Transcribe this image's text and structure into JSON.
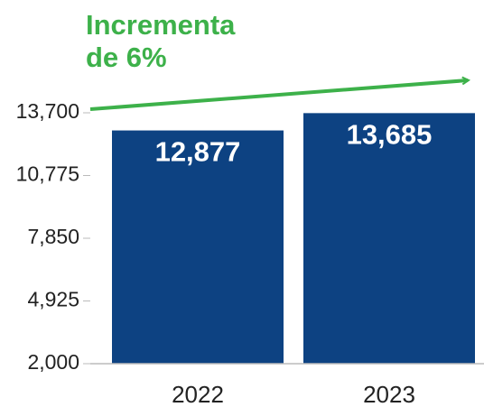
{
  "chart_data": {
    "type": "bar",
    "annotation": [
      "Incrementa",
      "de 6%"
    ],
    "categories": [
      "2022",
      "2023"
    ],
    "values": [
      12877,
      13685
    ],
    "value_labels": [
      "12,877",
      "13,685"
    ],
    "color": "#0d4282",
    "ylim": [
      2000,
      13700
    ],
    "yticks": [
      {
        "value": 2000,
        "label": "2,000"
      },
      {
        "value": 4925,
        "label": "4,925"
      },
      {
        "value": 7850,
        "label": "7,850"
      },
      {
        "value": 10775,
        "label": "10,775"
      },
      {
        "value": 13700,
        "label": "13,700"
      }
    ],
    "grid": false
  }
}
